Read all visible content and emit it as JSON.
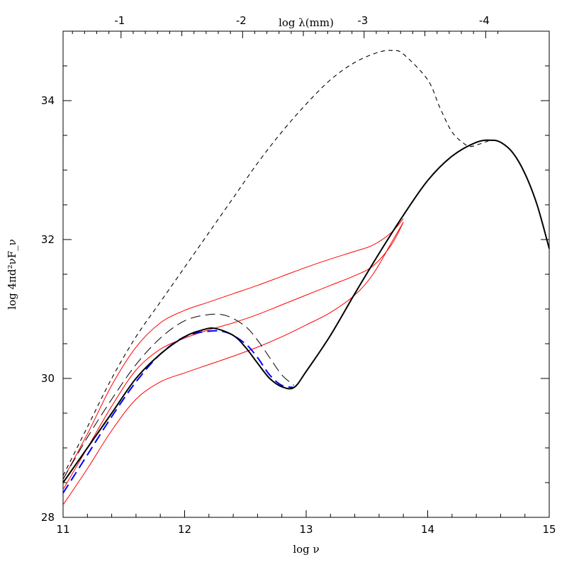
{
  "chart_data": {
    "type": "line",
    "xlabel": "log ν",
    "ylabel": "log 4πd²νF_ν",
    "x2label": "log λ(mm)",
    "xlim": [
      11,
      15
    ],
    "ylim": [
      28,
      35
    ],
    "x_ticks": [
      11,
      12,
      13,
      14,
      15
    ],
    "y_ticks": [
      28,
      30,
      32,
      34
    ],
    "x2_ticks": [
      {
        "label": "-1",
        "log_nu": 11.477
      },
      {
        "label": "-2",
        "log_nu": 12.477
      },
      {
        "label": "-3",
        "log_nu": 13.477
      },
      {
        "label": "-4",
        "log_nu": 14.477
      }
    ],
    "grid": false,
    "series": [
      {
        "color": "#000000",
        "dash": "6,5",
        "width": 1.1,
        "x": [
          11.0,
          11.2,
          11.4,
          11.6,
          11.8,
          12.0,
          12.2,
          12.4,
          12.6,
          12.8,
          13.0,
          13.2,
          13.4,
          13.6,
          13.72,
          13.8,
          14.0,
          14.1,
          14.2,
          14.3,
          14.35,
          14.4,
          14.5
        ],
        "y": [
          28.6,
          29.3,
          30.0,
          30.6,
          31.1,
          31.6,
          32.1,
          32.6,
          33.1,
          33.55,
          33.95,
          34.3,
          34.55,
          34.7,
          34.72,
          34.67,
          34.3,
          33.9,
          33.55,
          33.38,
          33.34,
          33.36,
          33.42
        ]
      },
      {
        "color": "#ff0000",
        "dash": "",
        "width": 1.0,
        "x": [
          11.0,
          11.2,
          11.4,
          11.6,
          11.8,
          12.0,
          12.2,
          12.4,
          12.6,
          12.8,
          13.0,
          13.2,
          13.4,
          13.55,
          13.7,
          13.8
        ],
        "y": [
          28.55,
          29.2,
          29.9,
          30.45,
          30.8,
          30.98,
          31.1,
          31.22,
          31.34,
          31.47,
          31.6,
          31.72,
          31.83,
          31.92,
          32.1,
          32.3
        ]
      },
      {
        "color": "#ff0000",
        "dash": "",
        "width": 1.0,
        "x": [
          11.0,
          11.2,
          11.4,
          11.6,
          11.8,
          12.0,
          12.2,
          12.4,
          12.6,
          12.8,
          13.0,
          13.2,
          13.4,
          13.55,
          13.7,
          13.8
        ],
        "y": [
          28.4,
          29.0,
          29.6,
          30.12,
          30.42,
          30.58,
          30.7,
          30.8,
          30.92,
          31.06,
          31.2,
          31.34,
          31.48,
          31.62,
          31.92,
          32.25
        ]
      },
      {
        "color": "#ff0000",
        "dash": "",
        "width": 1.0,
        "x": [
          11.0,
          11.2,
          11.4,
          11.6,
          11.8,
          12.0,
          12.2,
          12.4,
          12.6,
          12.8,
          13.0,
          13.2,
          13.4,
          13.55,
          13.7,
          13.8
        ],
        "y": [
          28.18,
          28.7,
          29.25,
          29.7,
          29.95,
          30.08,
          30.2,
          30.32,
          30.45,
          30.6,
          30.77,
          30.95,
          31.2,
          31.5,
          31.95,
          32.25
        ]
      },
      {
        "color": "#000000",
        "dash": "14,7",
        "width": 1.0,
        "x": [
          11.0,
          11.2,
          11.4,
          11.6,
          11.8,
          12.0,
          12.2,
          12.35,
          12.5,
          12.6,
          12.7,
          12.8,
          12.9
        ],
        "y": [
          28.55,
          29.15,
          29.7,
          30.2,
          30.58,
          30.83,
          30.92,
          30.9,
          30.75,
          30.55,
          30.3,
          30.05,
          29.9
        ]
      },
      {
        "color": "#0000ff",
        "dash": "14,7",
        "width": 2.0,
        "x": [
          11.0,
          11.2,
          11.4,
          11.6,
          11.8,
          12.0,
          12.2,
          12.35,
          12.5,
          12.6,
          12.7,
          12.8,
          12.9
        ],
        "y": [
          28.35,
          28.9,
          29.45,
          29.95,
          30.35,
          30.6,
          30.68,
          30.66,
          30.5,
          30.3,
          30.05,
          29.9,
          29.87
        ]
      },
      {
        "color": "#000000",
        "dash": "",
        "width": 2.0,
        "x": [
          11.0,
          11.2,
          11.4,
          11.6,
          11.8,
          12.0,
          12.15,
          12.25,
          12.4,
          12.5,
          12.6,
          12.7,
          12.8,
          12.9,
          13.0,
          13.2,
          13.4,
          13.6,
          13.8,
          14.0,
          14.2,
          14.4,
          14.52,
          14.6,
          14.7,
          14.8,
          14.9,
          15.0
        ],
        "y": [
          28.5,
          29.0,
          29.5,
          30.0,
          30.35,
          30.6,
          30.7,
          30.72,
          30.62,
          30.45,
          30.22,
          30.0,
          29.88,
          29.87,
          30.1,
          30.62,
          31.22,
          31.8,
          32.35,
          32.85,
          33.2,
          33.4,
          33.43,
          33.4,
          33.25,
          32.95,
          32.5,
          31.87
        ]
      }
    ]
  }
}
